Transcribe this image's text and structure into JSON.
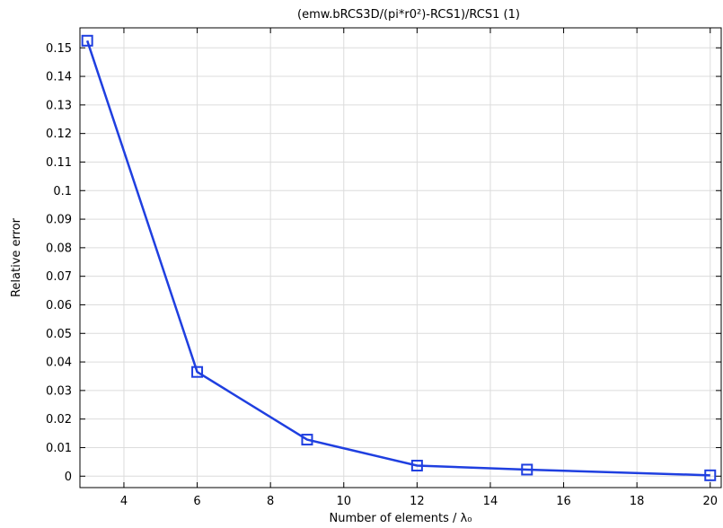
{
  "chart_data": {
    "type": "line",
    "title": "(emw.bRCS3D/(pi*r0²)-RCS1)/RCS1 (1)",
    "xlabel": "Number of elements / λ₀",
    "ylabel": "Relative error",
    "xlim": [
      2.8,
      20.3
    ],
    "ylim": [
      -0.004,
      0.157
    ],
    "xticks": [
      4,
      6,
      8,
      10,
      12,
      14,
      16,
      18,
      20
    ],
    "yticks": [
      0,
      0.01,
      0.02,
      0.03,
      0.04,
      0.05,
      0.06,
      0.07,
      0.08,
      0.09,
      0.1,
      0.11,
      0.12,
      0.13,
      0.14,
      0.15
    ],
    "xtick_labels": [
      "4",
      "6",
      "8",
      "10",
      "12",
      "14",
      "16",
      "18",
      "20"
    ],
    "ytick_labels": [
      "0",
      "0.01",
      "0.02",
      "0.03",
      "0.04",
      "0.05",
      "0.06",
      "0.07",
      "0.08",
      "0.09",
      "0.1",
      "0.11",
      "0.12",
      "0.13",
      "0.14",
      "0.15"
    ],
    "grid": true,
    "series": [
      {
        "color": "#1f3fe0",
        "marker": "square",
        "x": [
          3,
          6,
          9,
          12,
          15,
          20
        ],
        "y": [
          0.1525,
          0.0365,
          0.0128,
          0.0037,
          0.0023,
          0.0003
        ]
      }
    ]
  }
}
